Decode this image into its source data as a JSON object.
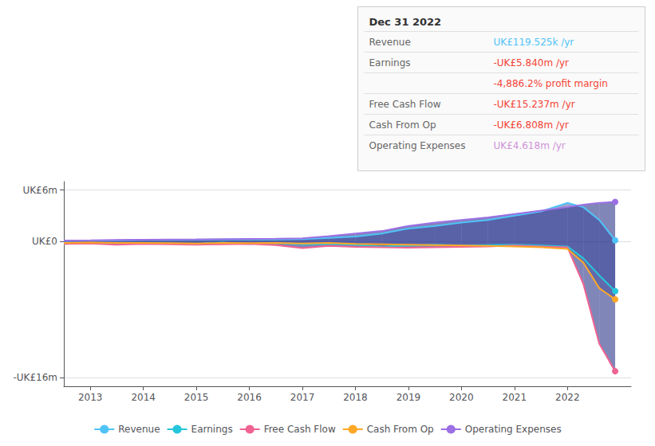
{
  "chart_data": {
    "type": "line",
    "x": [
      2012.5,
      2013,
      2013.5,
      2014,
      2014.5,
      2015,
      2015.5,
      2016,
      2016.5,
      2017,
      2017.5,
      2018,
      2018.5,
      2019,
      2019.5,
      2020,
      2020.5,
      2021,
      2021.5,
      2022,
      2022.3,
      2022.6,
      2022.9
    ],
    "series": [
      {
        "name": "Revenue",
        "color": "#4fc3f7",
        "values": [
          0.05,
          0.1,
          0.12,
          0.15,
          0.15,
          0.18,
          0.2,
          0.22,
          0.2,
          0.25,
          0.4,
          0.55,
          0.9,
          1.5,
          1.8,
          2.2,
          2.5,
          3.0,
          3.5,
          4.5,
          4.0,
          2.5,
          0.12
        ]
      },
      {
        "name": "Earnings",
        "color": "#26c6da",
        "values": [
          -0.3,
          -0.2,
          -0.3,
          -0.2,
          -0.25,
          -0.3,
          -0.15,
          -0.3,
          -0.2,
          -0.35,
          -0.3,
          -0.4,
          -0.6,
          -0.5,
          -0.4,
          -0.5,
          -0.45,
          -0.4,
          -0.5,
          -0.6,
          -2.0,
          -4.0,
          -5.84
        ]
      },
      {
        "name": "Free Cash Flow",
        "color": "#f06292",
        "values": [
          -0.3,
          -0.25,
          -0.4,
          -0.3,
          -0.35,
          -0.4,
          -0.35,
          -0.3,
          -0.45,
          -0.8,
          -0.55,
          -0.65,
          -0.7,
          -0.75,
          -0.7,
          -0.65,
          -0.6,
          -0.5,
          -0.6,
          -0.7,
          -5.0,
          -12.0,
          -15.24
        ]
      },
      {
        "name": "Cash From Op",
        "color": "#ffa726",
        "values": [
          -0.2,
          -0.15,
          -0.2,
          -0.18,
          -0.22,
          -0.25,
          -0.2,
          -0.22,
          -0.2,
          -0.25,
          -0.2,
          -0.3,
          -0.35,
          -0.4,
          -0.45,
          -0.5,
          -0.55,
          -0.6,
          -0.7,
          -0.9,
          -2.5,
          -5.5,
          -6.808
        ]
      },
      {
        "name": "Operating Expenses",
        "color": "#9c6fe4",
        "values": [
          0.1,
          0.12,
          0.15,
          0.18,
          0.2,
          0.22,
          0.25,
          0.28,
          0.3,
          0.35,
          0.6,
          0.9,
          1.2,
          1.8,
          2.2,
          2.5,
          2.8,
          3.2,
          3.6,
          4.0,
          4.3,
          4.5,
          4.618
        ]
      }
    ],
    "xlim": [
      2012.5,
      2023.2
    ],
    "xticks": [
      2013,
      2014,
      2015,
      2016,
      2017,
      2018,
      2019,
      2020,
      2021,
      2022
    ],
    "ylim": [
      -17,
      7
    ],
    "yticks": [
      {
        "value": 6,
        "label": "UK£6m"
      },
      {
        "value": 0,
        "label": "UK£0"
      },
      {
        "value": -16,
        "label": "-UK£16m"
      }
    ],
    "grid": true,
    "legend": "bottom",
    "annotation": {
      "title": "Dec 31 2022",
      "rows": [
        {
          "label": "Revenue",
          "value": "UK£119.525k /yr",
          "color": "#4fc3f7"
        },
        {
          "label": "Earnings",
          "value": "-UK£5.840m /yr",
          "color": "#f44336"
        },
        {
          "value": "-4,886.2% profit margin",
          "color": "#f44336"
        },
        {
          "label": "Free Cash Flow",
          "value": "-UK£15.237m /yr",
          "color": "#f44336"
        },
        {
          "label": "Cash From Op",
          "value": "-UK£6.808m /yr",
          "color": "#f44336"
        },
        {
          "label": "Operating Expenses",
          "value": "UK£4.618m /yr",
          "color": "#ce93d8"
        }
      ]
    }
  }
}
